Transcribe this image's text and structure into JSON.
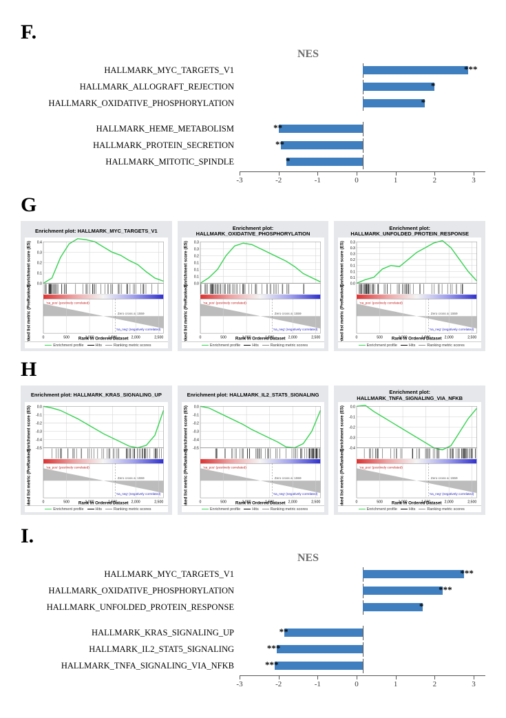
{
  "panels": {
    "F": "F.",
    "G": "G",
    "H": "H",
    "I": "I."
  },
  "nes_label": "NES",
  "axis_ticks": [
    -3,
    -2,
    -1,
    0,
    1,
    2,
    3
  ],
  "bar_fill": "#3f7fbf",
  "chartF": {
    "rows": [
      {
        "label": "HALLMARK_MYC_TARGETS_V1",
        "value": 2.7,
        "sig": "***"
      },
      {
        "label": "HALLMARK_ALLOGRAFT_REJECTION",
        "value": 1.85,
        "sig": "*"
      },
      {
        "label": "HALLMARK_OXIDATIVE_PHOSPHORYLATION",
        "value": 1.6,
        "sig": "*"
      },
      {
        "gap": true
      },
      {
        "label": "HALLMARK_HEME_METABOLISM",
        "value": -2.15,
        "sig": "**"
      },
      {
        "label": "HALLMARK_PROTEIN_SECRETION",
        "value": -2.1,
        "sig": "**"
      },
      {
        "label": "HALLMARK_MITOTIC_SPINDLE",
        "value": -1.95,
        "sig": "*"
      }
    ]
  },
  "chartI": {
    "rows": [
      {
        "label": "HALLMARK_MYC_TARGETS_V1",
        "value": 2.6,
        "sig": "***"
      },
      {
        "label": "HALLMARK_OXIDATIVE_PHOSPHORYLATION",
        "value": 2.05,
        "sig": "***"
      },
      {
        "label": "HALLMARK_UNFOLDED_PROTEIN_RESPONSE",
        "value": 1.55,
        "sig": "*"
      },
      {
        "gap": true
      },
      {
        "label": "HALLMARK_KRAS_SIGNALING_UP",
        "value": -2.0,
        "sig": "**"
      },
      {
        "label": "HALLMARK_IL2_STAT5_SIGNALING",
        "value": -2.2,
        "sig": "***"
      },
      {
        "label": "HALLMARK_TNFA_SIGNALING_VIA_NFKB",
        "value": -2.25,
        "sig": "***"
      }
    ]
  },
  "gsea": {
    "line_color": "#39d353",
    "grid_color": "#d0d0d0",
    "text_pos": "'na_pos' (positively correlated)",
    "text_neg": "'na_neg' (negatively correlated)",
    "zero_label": "Zero cross at 1559",
    "x_axis_label": "Rank in Ordered Dataset",
    "y_top_label": "Enrichment score (ES)",
    "y_bot_label": "Ranked list metric (PreRanked)",
    "x_ticks": [
      0,
      500,
      1000,
      1500,
      2000,
      2500
    ],
    "legend": {
      "ep": "Enrichment profile",
      "hits": "Hits",
      "rank": "Ranking metric scores"
    },
    "hits_density_seed": 7,
    "G": [
      {
        "title": "Enrichment plot: HALLMARK_MYC_TARGETS_V1",
        "yticks": [
          0.0,
          0.1,
          0.2,
          0.3,
          0.4
        ],
        "direction": "pos",
        "curve": [
          0,
          0.05,
          0.25,
          0.38,
          0.43,
          0.42,
          0.4,
          0.35,
          0.3,
          0.27,
          0.22,
          0.18,
          0.11,
          0.05,
          0.02
        ],
        "hits": "front"
      },
      {
        "title": "Enrichment plot:\nHALLMARK_OXIDATIVE_PHOSPHORYLATION",
        "yticks": [
          0.0,
          0.05,
          0.1,
          0.15,
          0.2,
          0.25,
          0.3
        ],
        "direction": "pos",
        "curve": [
          0,
          0.04,
          0.1,
          0.2,
          0.27,
          0.29,
          0.28,
          0.25,
          0.22,
          0.19,
          0.16,
          0.12,
          0.07,
          0.04,
          0.01
        ],
        "hits": "front"
      },
      {
        "title": "Enrichment plot:\nHALLMARK_UNFOLDED_PROTEIN_RESPONSE",
        "yticks": [
          0.0,
          0.05,
          0.1,
          0.15,
          0.2,
          0.25,
          0.3,
          0.35
        ],
        "direction": "pos",
        "curve": [
          0,
          0.03,
          0.05,
          0.12,
          0.15,
          0.14,
          0.2,
          0.26,
          0.3,
          0.34,
          0.36,
          0.3,
          0.2,
          0.1,
          0.02
        ],
        "hits": "front"
      }
    ],
    "H": [
      {
        "title": "Enrichment plot: HALLMARK_KRAS_SIGNALING_UP",
        "yticks": [
          0.0,
          -0.1,
          -0.2,
          -0.3,
          -0.4,
          -0.5
        ],
        "direction": "neg",
        "curve": [
          0,
          -0.02,
          -0.05,
          -0.1,
          -0.15,
          -0.21,
          -0.27,
          -0.33,
          -0.38,
          -0.43,
          -0.48,
          -0.5,
          -0.47,
          -0.35,
          -0.05
        ],
        "hits": "back"
      },
      {
        "title": "Enrichment plot: HALLMARK_IL2_STAT5_SIGNALING",
        "yticks": [
          0.0,
          -0.1,
          -0.2,
          -0.3,
          -0.4,
          -0.5
        ],
        "direction": "neg",
        "curve": [
          0,
          -0.02,
          -0.07,
          -0.12,
          -0.17,
          -0.22,
          -0.28,
          -0.33,
          -0.38,
          -0.43,
          -0.49,
          -0.5,
          -0.45,
          -0.3,
          -0.05
        ],
        "hits": "back"
      },
      {
        "title": "Enrichment plot:\nHALLMARK_TNFA_SIGNALING_VIA_NFKB",
        "yticks": [
          0.0,
          -0.1,
          -0.2,
          -0.3,
          -0.4
        ],
        "direction": "neg",
        "curve": [
          0,
          0.01,
          -0.05,
          -0.1,
          -0.15,
          -0.2,
          -0.25,
          -0.3,
          -0.35,
          -0.4,
          -0.42,
          -0.38,
          -0.25,
          -0.12,
          -0.02
        ],
        "hits": "back"
      }
    ]
  }
}
